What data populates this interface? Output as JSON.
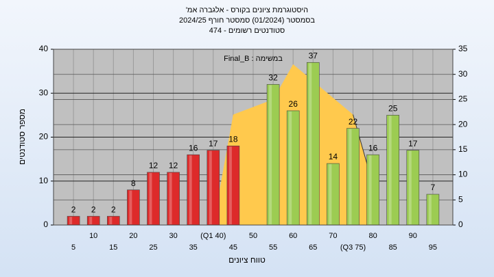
{
  "chart_data": {
    "type": "histogram",
    "title": "היסטוגרמת ציונים בקורס - אלגברה אמ'",
    "subtitle": "בסמסטר (01/2024) סמסטר חורף 2024/25",
    "subtitle2": "סטודנטים רשומים - 474",
    "annotation": "במשימה : Final_B",
    "xlabel": "טווח ציונים",
    "ylabel": "מספר סטודנטים",
    "x": [
      5,
      10,
      15,
      20,
      25,
      30,
      35,
      40,
      45,
      50,
      55,
      60,
      65,
      70,
      75,
      80,
      85,
      90,
      95
    ],
    "values": [
      2,
      2,
      2,
      8,
      12,
      12,
      16,
      17,
      18,
      null,
      32,
      26,
      37,
      14,
      22,
      16,
      25,
      17,
      7
    ],
    "colors": [
      "#dd2a2a",
      "#dd2a2a",
      "#dd2a2a",
      "#dd2a2a",
      "#dd2a2a",
      "#dd2a2a",
      "#dd2a2a",
      "#dd2a2a",
      "#dd2a2a",
      "#dd2a2a",
      "#9ccc52",
      "#9ccc52",
      "#9ccc52",
      "#9ccc52",
      "#9ccc52",
      "#9ccc52",
      "#9ccc52",
      "#9ccc52",
      "#9ccc52"
    ],
    "area": {
      "axis": "y2",
      "color": "#ffc94d",
      "x": [
        40,
        45,
        55,
        60,
        75,
        80
      ],
      "values": [
        0,
        22,
        25,
        32,
        22,
        8
      ]
    },
    "xlim": [
      0,
      100
    ],
    "xticks": [
      5,
      10,
      15,
      20,
      25,
      30,
      35,
      {
        "value": 40,
        "label": "(Q1 40)"
      },
      45,
      50,
      55,
      60,
      65,
      70,
      {
        "value": 75,
        "label": "(Q3 75)"
      },
      80,
      85,
      90,
      95
    ],
    "ylim": [
      0,
      40
    ],
    "yticks": [
      0,
      10,
      20,
      30,
      40
    ],
    "y2lim": [
      0,
      35
    ],
    "y2ticks": [
      0,
      5,
      10,
      15,
      20,
      25,
      30,
      35
    ],
    "grid": true
  }
}
